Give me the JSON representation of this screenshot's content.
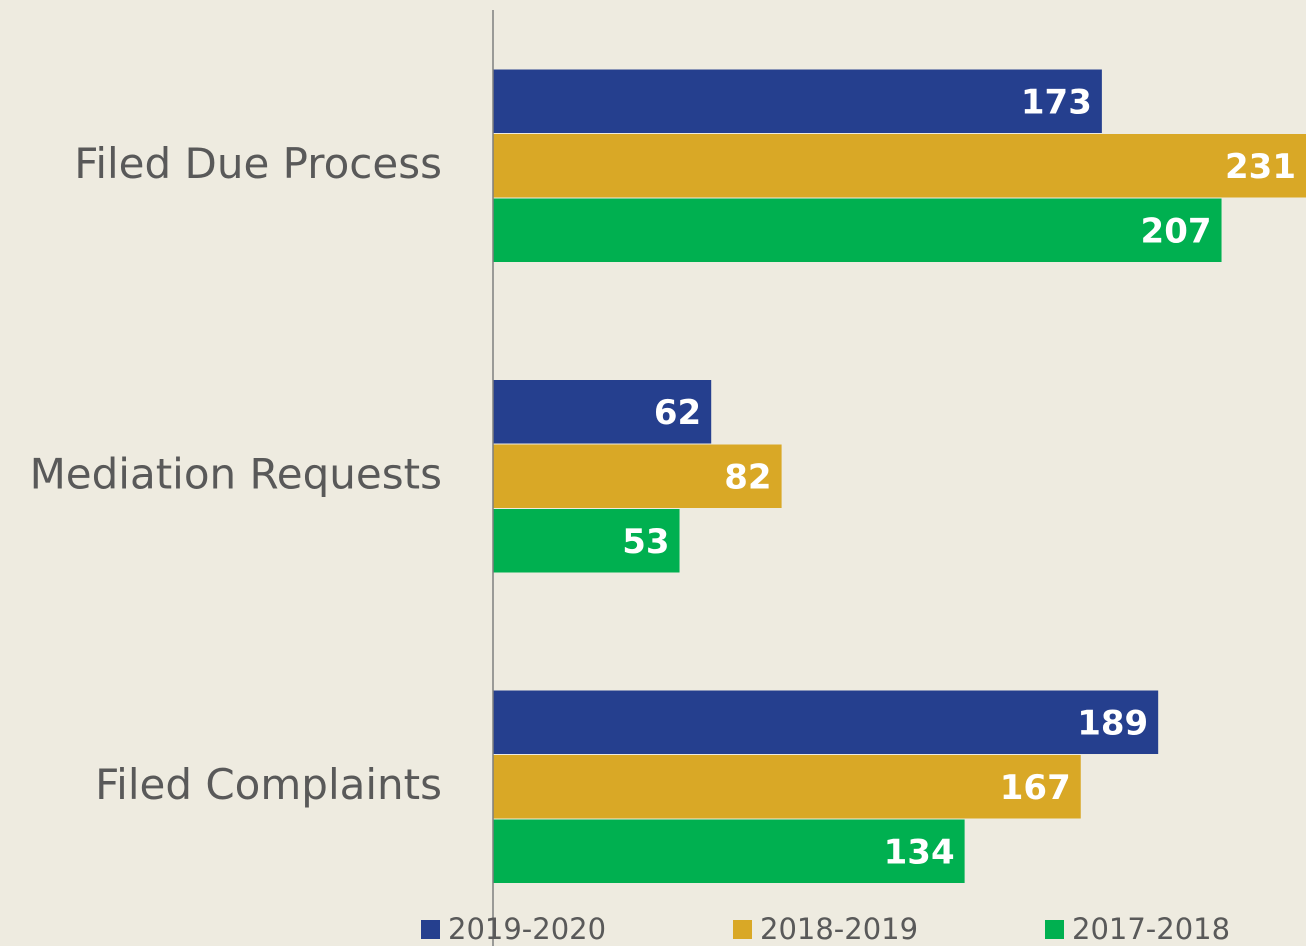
{
  "chart_data": {
    "type": "hbar",
    "categories": [
      "Filed Due Process",
      "Mediation Requests",
      "Filed Complaints"
    ],
    "series": [
      {
        "name": "2019-2020",
        "color": "#253f8e",
        "values": [
          173,
          62,
          189
        ]
      },
      {
        "name": "2018-2019",
        "color": "#d9a826",
        "values": [
          231,
          82,
          167
        ]
      },
      {
        "name": "2017-2018",
        "color": "#00b050",
        "values": [
          207,
          53,
          134
        ]
      }
    ],
    "xlim": [
      0,
      231
    ],
    "legend": "bottom"
  }
}
